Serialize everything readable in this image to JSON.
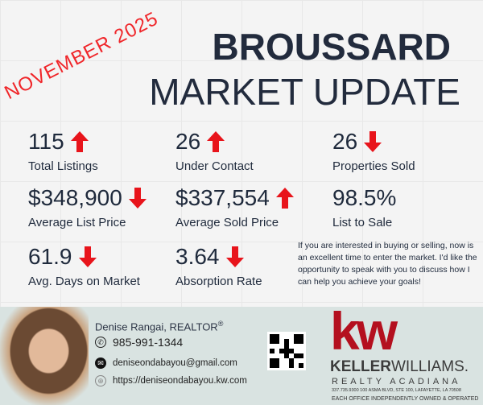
{
  "month": "NOVEMBER 2025",
  "title_line1": "BROUSSARD",
  "title_line2": "MARKET UPDATE",
  "colors": {
    "accent_red": "#e8141b",
    "title": "#222b3d",
    "kw_red": "#b4101f",
    "footer_bg": "#d9e3e1"
  },
  "stats": [
    {
      "value": "115",
      "label": "Total Listings",
      "trend": "up"
    },
    {
      "value": "26",
      "label": "Under Contact",
      "trend": "up"
    },
    {
      "value": "26",
      "label": "Properties Sold",
      "trend": "down"
    },
    {
      "value": "$348,900",
      "label": "Average List Price",
      "trend": "down"
    },
    {
      "value": "$337,554",
      "label": "Average Sold Price",
      "trend": "up"
    },
    {
      "value": "98.5%",
      "label": "List to Sale",
      "trend": "none"
    },
    {
      "value": "61.9",
      "label": "Avg. Days on Market",
      "trend": "down"
    },
    {
      "value": "3.64",
      "label": "Absorption Rate",
      "trend": "down"
    }
  ],
  "message": "If you are interested in buying or selling, now is an excellent time to enter the market. I'd like the opportunity to  speak with you to discuss how I can help you achieve your goals!",
  "agent": {
    "name": "Denise Rangai, REALTOR",
    "reg": "®",
    "phone": "985-991-1344",
    "email": "deniseondabayou@gmail.com",
    "website": "https://deniseondabayou.kw.com"
  },
  "brokerage": {
    "logo": "kw",
    "name_bold": "KELLER",
    "name_light": "WILLIAMS.",
    "office": "REALTY ACADIANA",
    "address": "337.735.9300   100 ASMA BLVD, STE 100, LAFAYETTE, LA 70508",
    "disclaimer": "EACH OFFICE INDEPENDENTLY OWNED & OPERATED"
  }
}
